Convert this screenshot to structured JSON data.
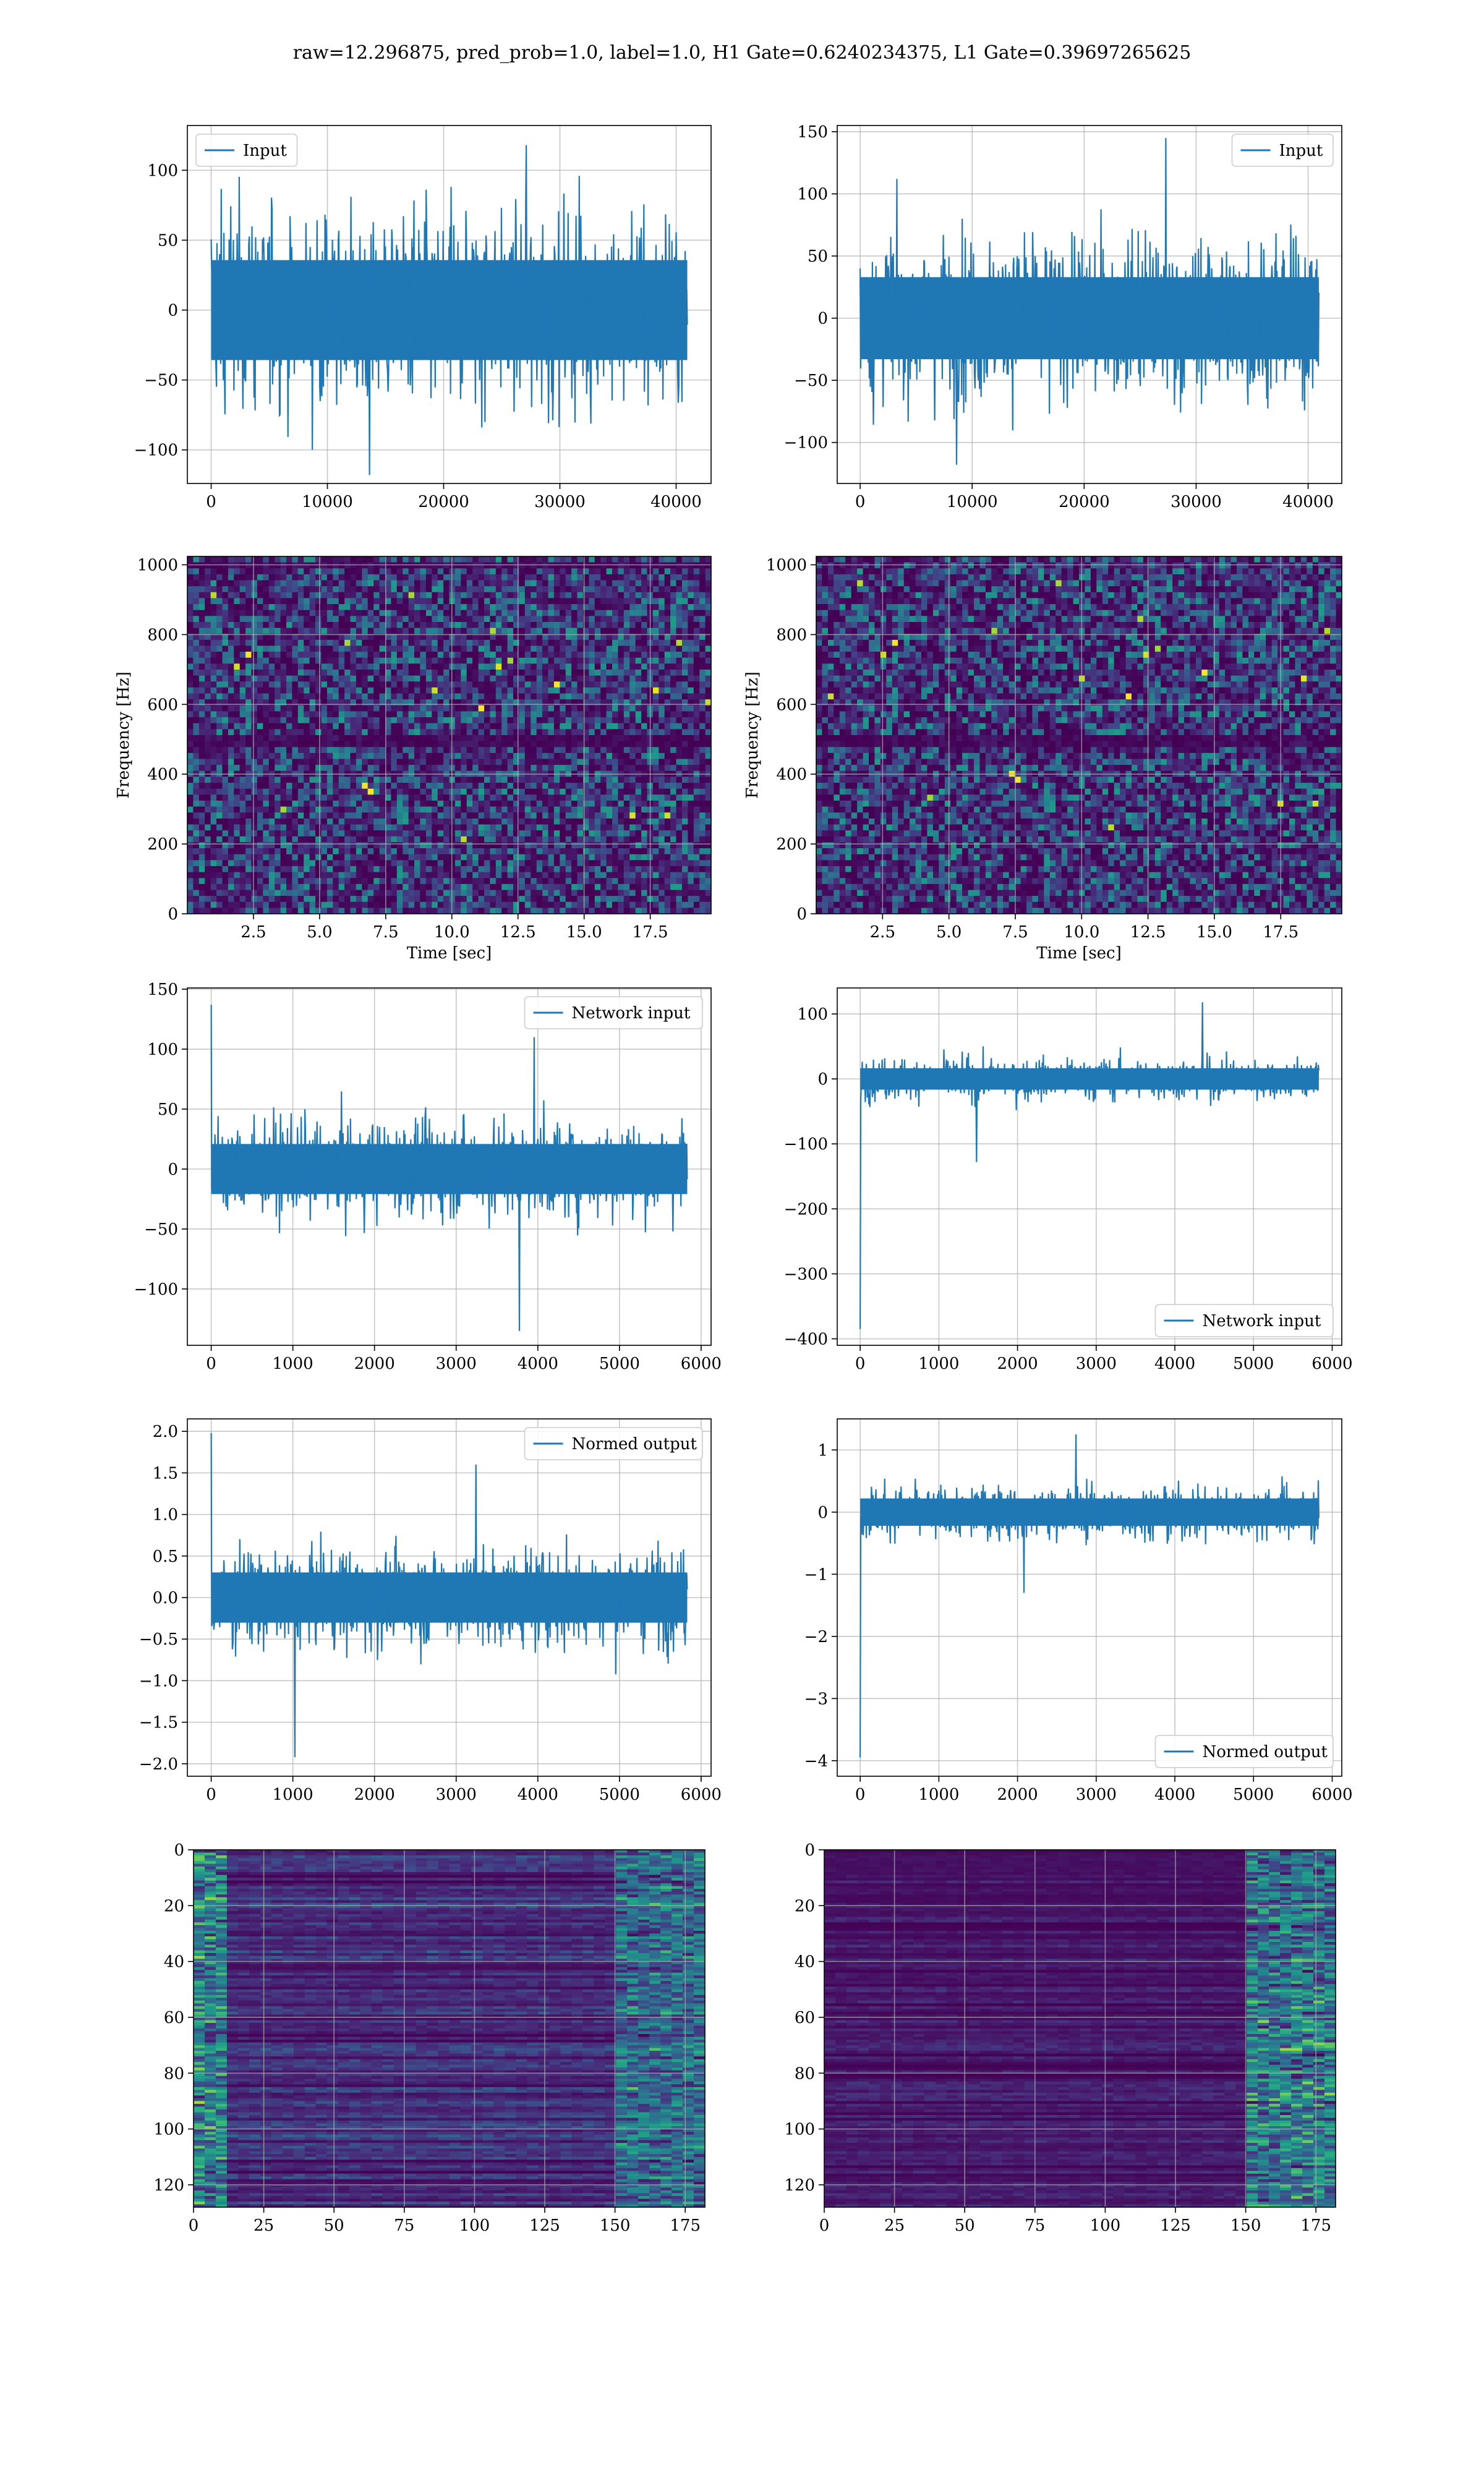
{
  "figure": {
    "title": "raw=12.296875, pred_prob=1.0, label=1.0, H1 Gate=0.6240234375, L1 Gate=0.39697265625"
  },
  "colors": {
    "line": "#1f77b4",
    "grid": "#b0b0b0",
    "viridis_dark": "#440154",
    "viridis_mid": "#21918c",
    "viridis_light": "#fde725"
  },
  "chart_data": [
    {
      "id": "h1-input",
      "type": "line",
      "series": [
        {
          "name": "Input",
          "x_range": [
            0,
            40959
          ],
          "amplitude": 65,
          "peak_extremes": [
            118,
            -118
          ]
        }
      ],
      "xlim": [
        -2048,
        43007
      ],
      "ylim": [
        -124,
        132
      ],
      "xticks": [
        0,
        10000,
        20000,
        30000,
        40000
      ],
      "yticks": [
        -100,
        -50,
        0,
        50,
        100
      ],
      "xlabel": "",
      "ylabel": "",
      "legend": "upper-left",
      "grid": true
    },
    {
      "id": "l1-input",
      "type": "line",
      "series": [
        {
          "name": "Input",
          "x_range": [
            0,
            40959
          ],
          "amplitude": 60,
          "peak_extremes": [
            145,
            -118
          ]
        }
      ],
      "xlim": [
        -2048,
        43007
      ],
      "ylim": [
        -133,
        155
      ],
      "xticks": [
        0,
        10000,
        20000,
        30000,
        40000
      ],
      "yticks": [
        -100,
        -50,
        0,
        50,
        100,
        150
      ],
      "xlabel": "",
      "ylabel": "",
      "legend": "upper-right",
      "grid": true
    },
    {
      "id": "h1-spectrogram",
      "type": "heatmap",
      "xlim": [
        0,
        19.8
      ],
      "ylim": [
        0,
        1024
      ],
      "xticks": [
        2.5,
        5.0,
        7.5,
        10.0,
        12.5,
        15.0,
        17.5
      ],
      "yticks": [
        0,
        200,
        400,
        600,
        800,
        1000
      ],
      "xlabel": "Time [sec]",
      "ylabel": "Frequency [Hz]",
      "colormap": "viridis",
      "grid": true,
      "dark_bands_hz": [
        495,
        1005
      ]
    },
    {
      "id": "l1-spectrogram",
      "type": "heatmap",
      "xlim": [
        0,
        19.8
      ],
      "ylim": [
        0,
        1024
      ],
      "xticks": [
        2.5,
        5.0,
        7.5,
        10.0,
        12.5,
        15.0,
        17.5
      ],
      "yticks": [
        0,
        200,
        400,
        600,
        800,
        1000
      ],
      "xlabel": "Time [sec]",
      "ylabel": "Frequency [Hz]",
      "colormap": "viridis",
      "grid": true,
      "dark_bands_hz": [
        495
      ]
    },
    {
      "id": "h1-network-input",
      "type": "line",
      "series": [
        {
          "name": "Network input",
          "x_range": [
            0,
            5830
          ],
          "amplitude": 38,
          "first_value": 137,
          "peak_extremes": [
            110,
            -135
          ]
        }
      ],
      "xlim": [
        -292,
        6122
      ],
      "ylim": [
        -147,
        151
      ],
      "xticks": [
        0,
        1000,
        2000,
        3000,
        4000,
        5000,
        6000
      ],
      "yticks": [
        -100,
        -50,
        0,
        50,
        100,
        150
      ],
      "xlabel": "",
      "ylabel": "",
      "legend": "upper-right",
      "grid": true
    },
    {
      "id": "l1-network-input",
      "type": "line",
      "series": [
        {
          "name": "Network input",
          "x_range": [
            0,
            5830
          ],
          "amplitude": 30,
          "first_value": -385,
          "peak_extremes": [
            118,
            -128
          ]
        }
      ],
      "xlim": [
        -292,
        6122
      ],
      "ylim": [
        -410,
        140
      ],
      "xticks": [
        0,
        1000,
        2000,
        3000,
        4000,
        5000,
        6000
      ],
      "yticks": [
        -400,
        -300,
        -200,
        -100,
        0,
        100
      ],
      "xlabel": "",
      "ylabel": "",
      "legend": "lower-right",
      "grid": true
    },
    {
      "id": "h1-normed-output",
      "type": "line",
      "series": [
        {
          "name": "Normed output",
          "x_range": [
            0,
            5830
          ],
          "amplitude": 0.55,
          "first_value": 1.98,
          "peak_extremes": [
            1.6,
            -1.92
          ]
        }
      ],
      "xlim": [
        -292,
        6122
      ],
      "ylim": [
        -2.15,
        2.15
      ],
      "xticks": [
        0,
        1000,
        2000,
        3000,
        4000,
        5000,
        6000
      ],
      "yticks": [
        -2.0,
        -1.5,
        -1.0,
        -0.5,
        0.0,
        0.5,
        1.0,
        1.5,
        2.0
      ],
      "xlabel": "",
      "ylabel": "",
      "legend": "upper-right",
      "grid": true
    },
    {
      "id": "l1-normed-output",
      "type": "line",
      "series": [
        {
          "name": "Normed output",
          "x_range": [
            0,
            5830
          ],
          "amplitude": 0.4,
          "first_value": -3.95,
          "peak_extremes": [
            1.25,
            -1.3
          ]
        }
      ],
      "xlim": [
        -292,
        6122
      ],
      "ylim": [
        -4.25,
        1.5
      ],
      "xticks": [
        0,
        1000,
        2000,
        3000,
        4000,
        5000,
        6000
      ],
      "yticks": [
        -4,
        -3,
        -2,
        -1,
        0,
        1
      ],
      "xlabel": "",
      "ylabel": "",
      "legend": "lower-right",
      "grid": true
    },
    {
      "id": "h1-feature-map",
      "type": "heatmap",
      "xlim": [
        0,
        182
      ],
      "ylim": [
        128,
        0
      ],
      "rows": 128,
      "cols": 182,
      "xticks": [
        0,
        25,
        50,
        75,
        100,
        125,
        150,
        175
      ],
      "yticks": [
        0,
        20,
        40,
        60,
        80,
        100,
        120
      ],
      "xlabel": "",
      "ylabel": "",
      "colormap": "viridis",
      "grid": true
    },
    {
      "id": "l1-feature-map",
      "type": "heatmap",
      "xlim": [
        0,
        182
      ],
      "ylim": [
        128,
        0
      ],
      "rows": 128,
      "cols": 182,
      "xticks": [
        0,
        25,
        50,
        75,
        100,
        125,
        150,
        175
      ],
      "yticks": [
        0,
        20,
        40,
        60,
        80,
        100,
        120
      ],
      "xlabel": "",
      "ylabel": "",
      "colormap": "viridis",
      "grid": true
    }
  ]
}
